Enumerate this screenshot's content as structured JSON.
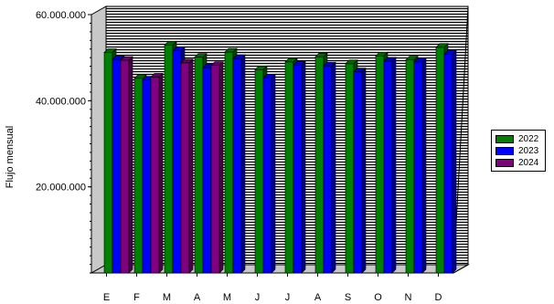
{
  "chart_data": {
    "type": "bar",
    "title": "",
    "xlabel": "",
    "ylabel": "Flujo mensual",
    "ylim": [
      0,
      60000000
    ],
    "yticks": [
      {
        "value": 20000000,
        "label": "20.000.000"
      },
      {
        "value": 40000000,
        "label": "40.000.000"
      },
      {
        "value": 60000000,
        "label": "60.000.000"
      }
    ],
    "categories": [
      "E",
      "F",
      "M",
      "A",
      "M",
      "J",
      "J",
      "A",
      "S",
      "O",
      "N",
      "D"
    ],
    "series": [
      {
        "name": "2022",
        "color": "#008000",
        "values": [
          51200000,
          45200000,
          52900000,
          50100000,
          51300000,
          47200000,
          49000000,
          50200000,
          48600000,
          50400000,
          49500000,
          52400000
        ]
      },
      {
        "name": "2023",
        "color": "#0000ff",
        "values": [
          49600000,
          44800000,
          51600000,
          47700000,
          49800000,
          45300000,
          48300000,
          48100000,
          46700000,
          49200000,
          49000000,
          50800000
        ]
      },
      {
        "name": "2024",
        "color": "#800080",
        "values": [
          49400000,
          45500000,
          48800000,
          48200000,
          null,
          null,
          null,
          null,
          null,
          null,
          null,
          null
        ]
      }
    ],
    "grid": true,
    "legend_position": "right"
  }
}
